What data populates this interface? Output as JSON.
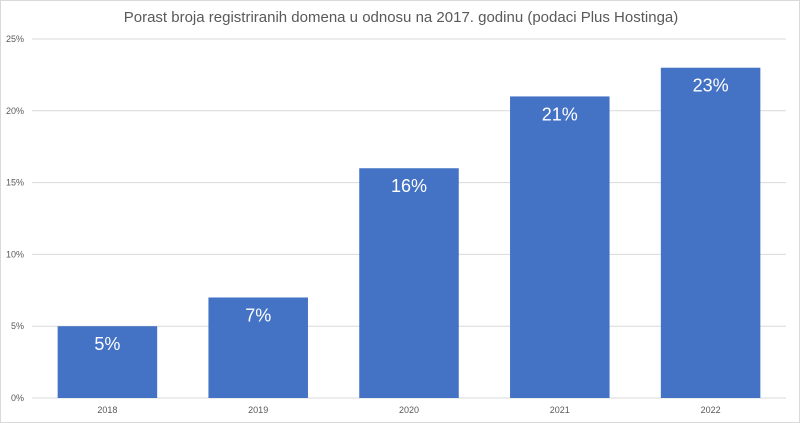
{
  "chart_data": {
    "type": "bar",
    "title": "Porast broja registriranih domena u odnosu na 2017. godinu (podaci Plus Hostinga)",
    "xlabel": "",
    "ylabel": "",
    "categories": [
      "2018",
      "2019",
      "2020",
      "2021",
      "2022"
    ],
    "values": [
      5,
      7,
      16,
      21,
      23
    ],
    "data_labels": [
      "5%",
      "7%",
      "16%",
      "21%",
      "23%"
    ],
    "ylim": [
      0,
      25
    ],
    "yticks": [
      0,
      5,
      10,
      15,
      20,
      25
    ],
    "ytick_labels": [
      "0%",
      "5%",
      "10%",
      "15%",
      "20%",
      "25%"
    ],
    "grid": true,
    "legend": "none",
    "bar_color": "#4472C4",
    "grid_color": "#D9D9D9"
  }
}
